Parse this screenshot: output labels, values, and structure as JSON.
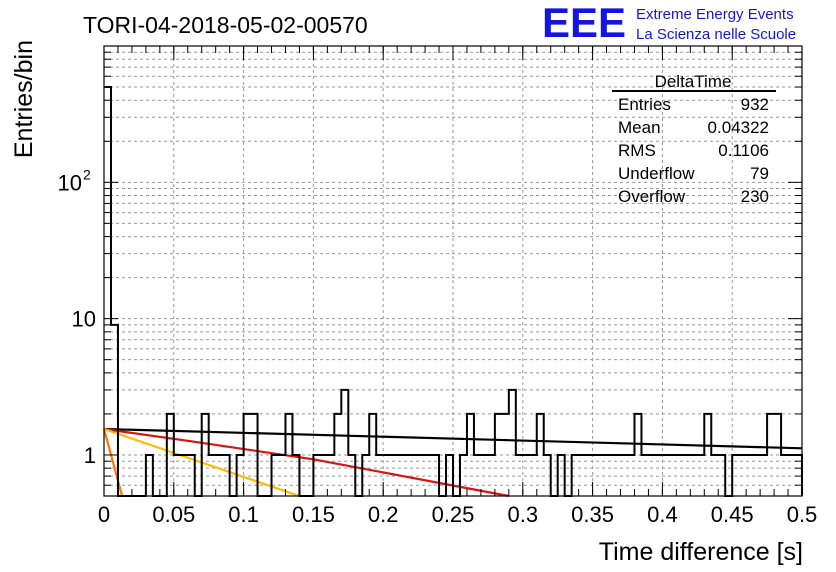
{
  "chart_data": {
    "type": "histogram",
    "title": "TORI-04-2018-05-02-00570",
    "xlabel": "Time difference [s]",
    "ylabel": "Entries/bin",
    "xlim": [
      0,
      0.5
    ],
    "ylim": [
      0.5,
      1000
    ],
    "y_scale": "log",
    "grid": true,
    "x_ticks": [
      "0",
      "0.05",
      "0.1",
      "0.15",
      "0.2",
      "0.25",
      "0.3",
      "0.35",
      "0.4",
      "0.45",
      "0.5"
    ],
    "y_ticks": [
      {
        "value": 1,
        "label": "1"
      },
      {
        "value": 10,
        "label": "10"
      },
      {
        "value": 100,
        "label": "10",
        "sup": "2"
      }
    ],
    "bin_width": 0.005,
    "histogram_values": [
      500,
      9,
      0,
      0,
      0,
      0,
      1,
      0,
      0,
      2,
      1,
      1,
      1,
      0,
      2,
      1,
      1,
      1,
      0,
      1,
      2,
      2,
      0,
      0,
      1,
      1,
      2,
      1,
      0,
      0,
      1,
      1,
      1,
      2,
      3,
      1,
      0,
      1,
      2,
      1,
      1,
      1,
      1,
      1,
      1,
      1,
      1,
      1,
      0,
      1,
      0,
      1,
      2,
      1,
      1,
      1,
      2,
      2,
      3,
      1,
      1,
      1,
      2,
      1,
      0,
      1,
      0,
      1,
      1,
      1,
      1,
      1,
      1,
      1,
      1,
      1,
      2,
      1,
      1,
      1,
      1,
      1,
      1,
      1,
      1,
      1,
      2,
      1,
      1,
      0,
      1,
      1,
      1,
      1,
      1,
      2,
      2,
      1,
      1,
      1
    ],
    "fits": [
      {
        "color": "#000000",
        "points": [
          [
            0.0,
            1.55
          ],
          [
            0.5,
            1.12
          ]
        ]
      },
      {
        "color": "#dd1111",
        "points": [
          [
            0.0,
            1.55
          ],
          [
            0.06,
            1.27
          ],
          [
            0.15,
            0.93
          ],
          [
            0.29,
            0.5
          ]
        ]
      },
      {
        "color": "#ffbb00",
        "points": [
          [
            0.0,
            1.55
          ],
          [
            0.14,
            0.5
          ]
        ]
      },
      {
        "color": "#ff7700",
        "points": [
          [
            0.0,
            1.55
          ],
          [
            0.013,
            0.5
          ]
        ]
      }
    ],
    "stats": {
      "title": "DeltaTime",
      "rows": [
        {
          "label": "Entries",
          "value": "932"
        },
        {
          "label": "Mean",
          "value": "0.04322"
        },
        {
          "label": "RMS",
          "value": "0.1106"
        },
        {
          "label": "Underflow",
          "value": "79"
        },
        {
          "label": "Overflow",
          "value": "230"
        }
      ]
    }
  },
  "logo": {
    "mark": "EEE",
    "line1": "Extreme Energy Events",
    "line2": "La Scienza nelle Scuole",
    "color": "#1515e0"
  }
}
